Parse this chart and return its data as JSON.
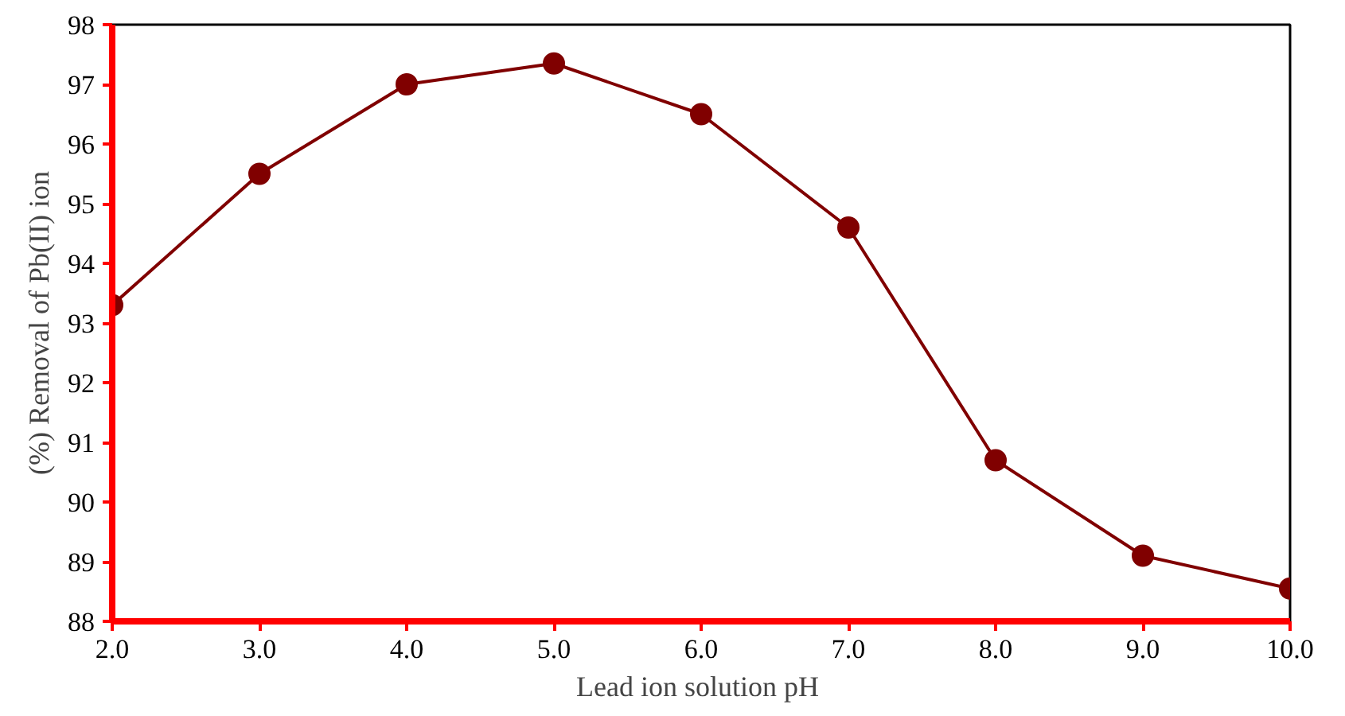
{
  "chart_data": {
    "type": "line",
    "xlabel": "Lead ion solution  pH",
    "ylabel": "(%) Removal of Pb(II) ion",
    "x": [
      2,
      3,
      4,
      5,
      6,
      7,
      8,
      9,
      10
    ],
    "series": [
      {
        "color": "#800000",
        "values": [
          93.3,
          95.5,
          97.0,
          97.35,
          96.5,
          94.6,
          90.7,
          89.1,
          88.55
        ]
      }
    ],
    "xlim": [
      2,
      10
    ],
    "ylim": [
      88,
      98
    ],
    "xticks": [
      {
        "value": 2,
        "label": "2.0"
      },
      {
        "value": 3,
        "label": "3.0"
      },
      {
        "value": 4,
        "label": "4.0"
      },
      {
        "value": 5,
        "label": "5.0"
      },
      {
        "value": 6,
        "label": "6.0"
      },
      {
        "value": 7,
        "label": "7.0"
      },
      {
        "value": 8,
        "label": "8.0"
      },
      {
        "value": 9,
        "label": "9.0"
      },
      {
        "value": 10,
        "label": "10.0"
      }
    ],
    "yticks": [
      88,
      89,
      90,
      91,
      92,
      93,
      94,
      95,
      96,
      97,
      98
    ],
    "grid": false,
    "marker": "circle",
    "line_style": "solid"
  }
}
